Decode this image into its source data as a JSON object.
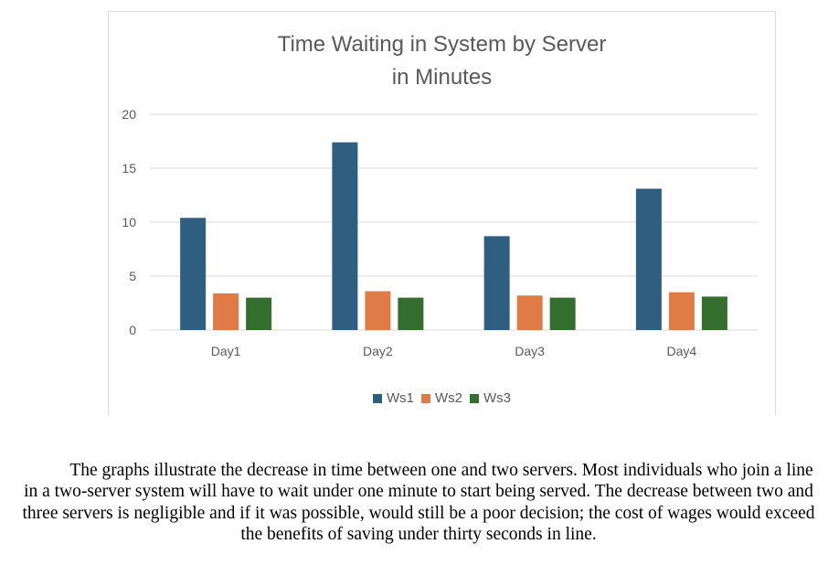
{
  "chart_data": {
    "type": "bar",
    "title_lines": [
      "Time Waiting in System by Server",
      "in Minutes"
    ],
    "categories": [
      "Day1",
      "Day2",
      "Day3",
      "Day4"
    ],
    "series": [
      {
        "name": "Ws1",
        "color": "#2e5f80",
        "values": [
          10.4,
          17.4,
          8.7,
          13.1
        ]
      },
      {
        "name": "Ws2",
        "color": "#e07a47",
        "values": [
          3.4,
          3.6,
          3.2,
          3.5
        ]
      },
      {
        "name": "Ws3",
        "color": "#336e2f",
        "values": [
          3.0,
          3.0,
          3.0,
          3.1
        ]
      }
    ],
    "ylim": [
      0,
      20
    ],
    "yticks": [
      0,
      5,
      10,
      15,
      20
    ],
    "grid": true,
    "legend_position": "bottom"
  },
  "caption": "The graphs illustrate the decrease in time between one and two servers. Most individuals who join a line in a two-server system will have to wait under one minute to start being served. The decrease between two and three servers is negligible and if it was possible, would still be a poor decision; the cost of wages would exceed the benefits of saving under thirty seconds in line."
}
